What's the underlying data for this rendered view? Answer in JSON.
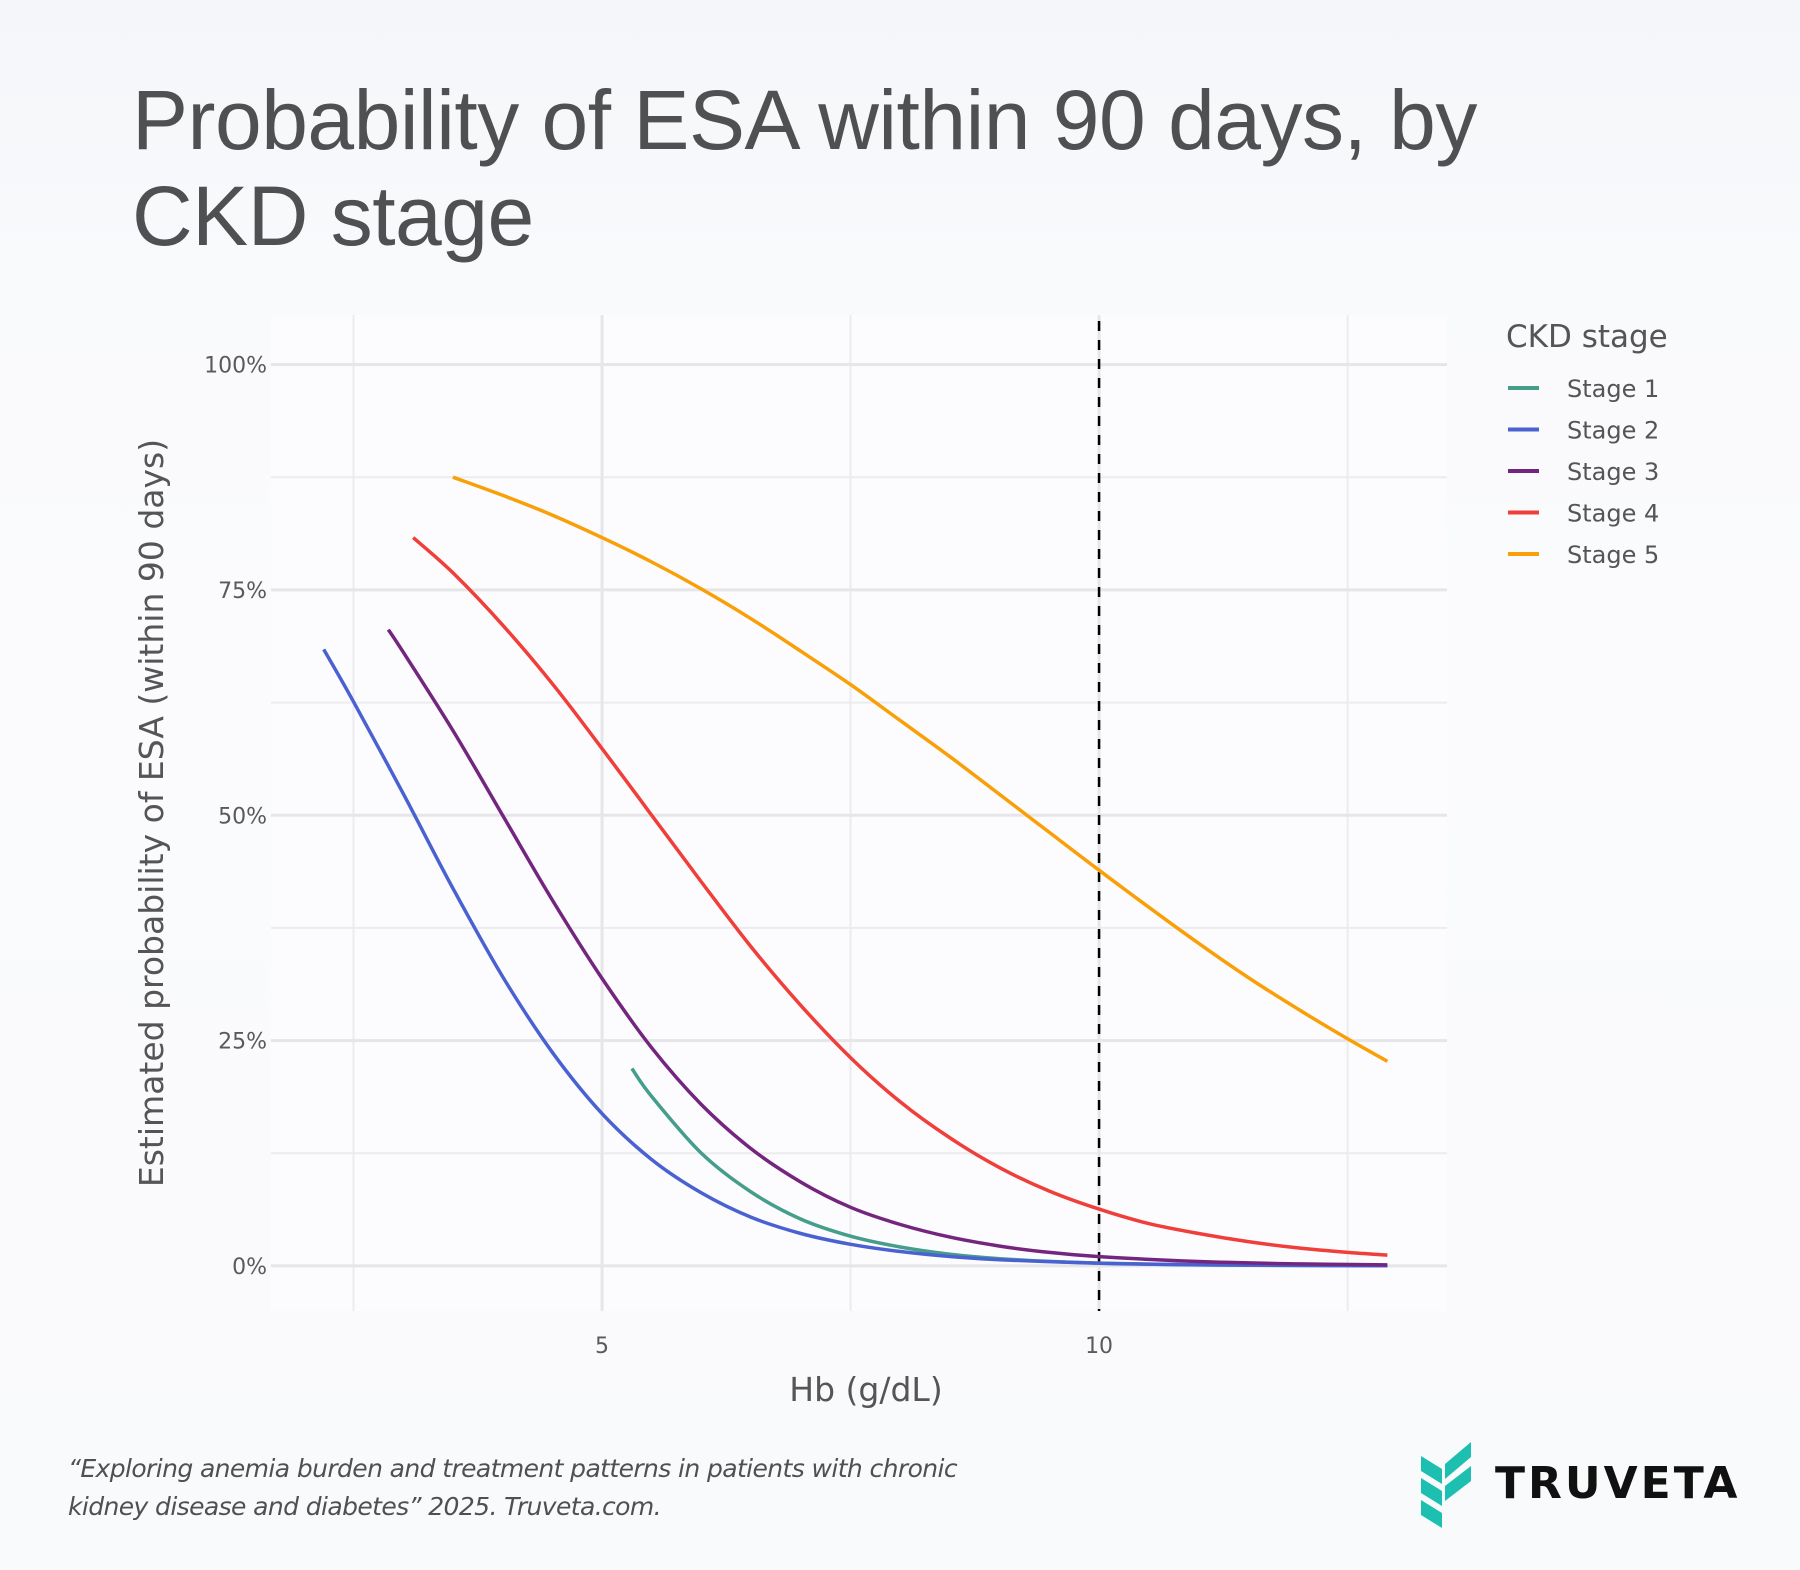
{
  "title": {
    "line1": "Probability of ESA within 90 days, by",
    "line2": "CKD stage"
  },
  "footer": {
    "line1": "“Exploring anemia burden and treatment patterns in patients with chronic",
    "line2": "kidney disease and diabetes” 2025. Truveta.com."
  },
  "logo": {
    "icon": "truveta-leaf-icon",
    "text": "TRUVETA",
    "color": "#1dbfb0"
  },
  "chart_data": {
    "type": "line",
    "title": "Probability of ESA within 90 days, by CKD stage",
    "xlabel": "Hb (g/dL)",
    "ylabel": "Estimated probability of ESA (within 90 days)",
    "xlim": [
      1.67,
      13.5
    ],
    "ylim": [
      -5,
      105.5
    ],
    "x_ticks": [
      {
        "value": 5,
        "label": "5"
      },
      {
        "value": 10,
        "label": "10"
      }
    ],
    "x_minor_grid": [
      2.5,
      7.5,
      12.5
    ],
    "y_ticks": [
      {
        "value": 0,
        "label": "0%"
      },
      {
        "value": 25,
        "label": "25%"
      },
      {
        "value": 50,
        "label": "50%"
      },
      {
        "value": 75,
        "label": "75%"
      },
      {
        "value": 100,
        "label": "100%"
      }
    ],
    "y_minor_grid": [
      12.5,
      37.5,
      62.5,
      87.5
    ],
    "grid": true,
    "reference_line": {
      "axis": "x",
      "value": 10,
      "style": "dashed",
      "color": "#000000"
    },
    "legend": {
      "title": "CKD stage",
      "position": "top-right-outside"
    },
    "series": [
      {
        "name": "Stage 1",
        "color": "#459d8c",
        "x": [
          5.3,
          5.5,
          6.0,
          6.5,
          7.0,
          7.5,
          8.0,
          8.5,
          9.0,
          9.5,
          10.0,
          11.0,
          12.0,
          12.9
        ],
        "y": [
          21.9,
          18.8,
          12.5,
          8.2,
          5.2,
          3.3,
          2.1,
          1.3,
          0.8,
          0.5,
          0.31,
          0.12,
          0.05,
          0.02
        ]
      },
      {
        "name": "Stage 2",
        "color": "#4a62d1",
        "x": [
          2.2,
          2.5,
          3.0,
          3.5,
          4.0,
          4.5,
          5.0,
          5.5,
          6.0,
          6.5,
          7.0,
          7.5,
          8.0,
          8.5,
          9.0,
          10.0,
          11.0,
          12.0,
          12.9
        ],
        "y": [
          68.4,
          62.6,
          52.4,
          41.9,
          32.1,
          23.7,
          16.9,
          11.8,
          8.1,
          5.4,
          3.6,
          2.4,
          1.6,
          1.05,
          0.69,
          0.3,
          0.13,
          0.06,
          0.03
        ]
      },
      {
        "name": "Stage 3",
        "color": "#74267e",
        "x": [
          2.85,
          3.0,
          3.5,
          4.0,
          4.5,
          5.0,
          5.5,
          6.0,
          6.5,
          7.0,
          7.5,
          8.0,
          8.5,
          9.0,
          9.5,
          10.0,
          11.0,
          12.0,
          12.9
        ],
        "y": [
          70.6,
          68.1,
          59.4,
          50.0,
          40.6,
          31.9,
          24.2,
          17.9,
          13.0,
          9.3,
          6.5,
          4.6,
          3.2,
          2.2,
          1.5,
          1.03,
          0.49,
          0.23,
          0.12
        ]
      },
      {
        "name": "Stage 4",
        "color": "#f03e3a",
        "x": [
          3.1,
          3.5,
          4.0,
          4.5,
          5.0,
          5.5,
          6.0,
          6.5,
          7.0,
          7.5,
          8.0,
          8.5,
          9.0,
          9.5,
          10.0,
          10.5,
          11.0,
          11.5,
          12.0,
          12.5,
          12.9
        ],
        "y": [
          80.8,
          76.9,
          71.1,
          64.6,
          57.4,
          50.0,
          42.6,
          35.4,
          28.9,
          23.1,
          18.2,
          14.2,
          10.9,
          8.3,
          6.3,
          4.7,
          3.6,
          2.7,
          2.0,
          1.5,
          1.2
        ]
      },
      {
        "name": "Stage 5",
        "color": "#f99f08",
        "x": [
          3.5,
          4.0,
          4.5,
          5.0,
          5.5,
          6.0,
          6.5,
          7.0,
          7.5,
          8.0,
          8.5,
          9.0,
          9.5,
          10.0,
          10.5,
          11.0,
          11.5,
          12.0,
          12.5,
          12.9
        ],
        "y": [
          87.5,
          85.5,
          83.3,
          80.8,
          78.1,
          75.1,
          71.8,
          68.2,
          64.5,
          60.5,
          56.5,
          52.3,
          48.1,
          43.9,
          39.8,
          35.8,
          32.0,
          28.5,
          25.2,
          22.7
        ]
      }
    ]
  }
}
